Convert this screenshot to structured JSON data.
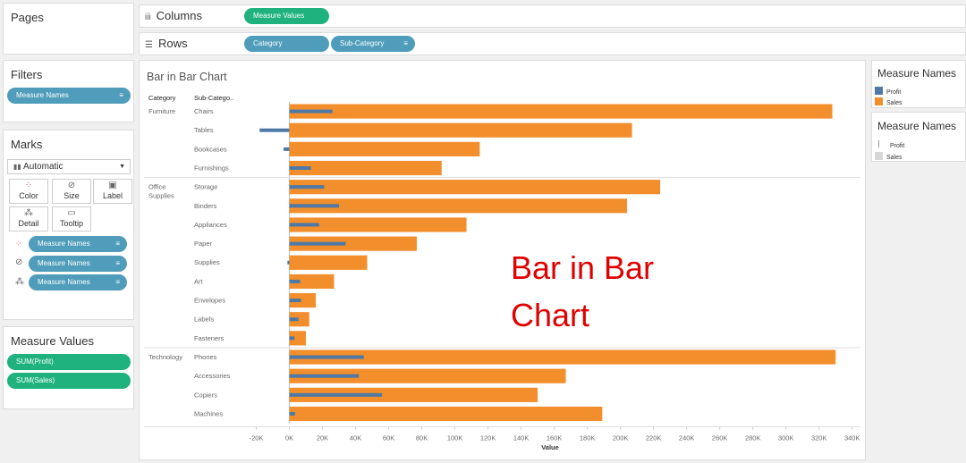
{
  "pages": {
    "title": "Pages"
  },
  "filters": {
    "title": "Filters",
    "pills": [
      "Measure Names"
    ]
  },
  "marks": {
    "title": "Marks",
    "type": "Automatic",
    "buttons": [
      "Color",
      "Size",
      "Label",
      "Detail",
      "Tooltip"
    ],
    "pills": [
      "Measure Names",
      "Measure Names",
      "Measure Names"
    ]
  },
  "measure_values": {
    "title": "Measure Values",
    "pills": [
      "SUM(Profit)",
      "SUM(Sales)"
    ]
  },
  "shelves": {
    "columns": {
      "label": "Columns",
      "pills": [
        "Measure Values"
      ]
    },
    "rows": {
      "label": "Rows",
      "pills": [
        "Category",
        "Sub-Category"
      ]
    }
  },
  "legends": {
    "color": {
      "title": "Measure Names",
      "items": [
        "Profit",
        "Sales"
      ]
    },
    "size": {
      "title": "Measure Names",
      "items": [
        "Profit",
        "Sales"
      ]
    }
  },
  "colors": {
    "sales": "#f28e2b",
    "profit": "#4e79a7",
    "pill_blue": "#4f9dbb",
    "pill_green": "#1fb27f",
    "annotation": "#e00000"
  },
  "chart_title": "Bar in Bar Chart",
  "annotation": {
    "line1": "Bar in Bar",
    "line2": "Chart"
  },
  "table_headers": {
    "category": "Category",
    "subcategory": "Sub-Catego.."
  },
  "chart_data": {
    "type": "bar",
    "orientation": "horizontal",
    "title": "Bar in Bar Chart",
    "xlabel": "Value",
    "xlim": [
      -30000,
      345000
    ],
    "xticks": [
      -20000,
      0,
      20000,
      40000,
      60000,
      80000,
      100000,
      120000,
      140000,
      160000,
      180000,
      200000,
      220000,
      240000,
      260000,
      280000,
      300000,
      320000,
      340000
    ],
    "xtick_labels": [
      "-20K",
      "0K",
      "20K",
      "40K",
      "60K",
      "80K",
      "100K",
      "120K",
      "140K",
      "160K",
      "180K",
      "200K",
      "220K",
      "240K",
      "260K",
      "280K",
      "300K",
      "320K",
      "340K"
    ],
    "groups": [
      {
        "category": "Furniture",
        "subcategories": [
          "Chairs",
          "Tables",
          "Bookcases",
          "Furnishings"
        ]
      },
      {
        "category": "Office Supplies",
        "subcategories": [
          "Storage",
          "Binders",
          "Appliances",
          "Paper",
          "Supplies",
          "Art",
          "Envelopes",
          "Labels",
          "Fasteners"
        ]
      },
      {
        "category": "Technology",
        "subcategories": [
          "Phones",
          "Accessories",
          "Copiers",
          "Machines"
        ]
      }
    ],
    "series": [
      {
        "name": "Sales",
        "values": [
          328000,
          207000,
          115000,
          92000,
          224000,
          204000,
          107000,
          77000,
          47000,
          27000,
          16000,
          12000,
          10000,
          330000,
          167000,
          150000,
          189000
        ]
      },
      {
        "name": "Profit",
        "values": [
          26000,
          -18000,
          -3500,
          13000,
          21000,
          30000,
          18000,
          34000,
          -1200,
          6500,
          7000,
          5500,
          3000,
          45000,
          42000,
          56000,
          3400
        ]
      }
    ]
  }
}
